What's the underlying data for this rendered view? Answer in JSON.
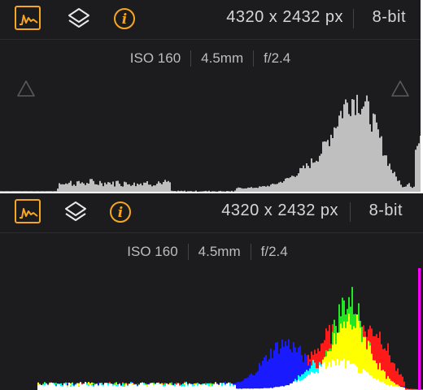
{
  "theme": {
    "accent": "#f5a623",
    "background": "#1c1c1e",
    "text": "#d6d6d6",
    "muted_text": "#bdbdbd",
    "luminance": "#bfbfbf",
    "red": "#ff1a1a",
    "green": "#22e622",
    "blue": "#1a1aff",
    "yellow": "#ffff00",
    "cyan": "#00ffff",
    "magenta": "#ff00ff",
    "white": "#ffffff"
  },
  "panels": [
    {
      "mode": "luminance",
      "toolbar": {
        "histogram_icon": "waveform-icon",
        "layers_icon": "layers-icon",
        "info_icon": "info-icon",
        "dimensions": "4320 x 2432 px",
        "bit_depth": "8-bit"
      },
      "exif": {
        "iso": "ISO 160",
        "focal_length": "4.5mm",
        "aperture": "f/2.4"
      },
      "clipping": {
        "shadow_icon": "triangle-outline-icon",
        "highlight_icon": "triangle-outline-icon"
      }
    },
    {
      "mode": "rgb",
      "toolbar": {
        "histogram_icon": "waveform-icon",
        "layers_icon": "layers-icon",
        "info_icon": "info-icon",
        "dimensions": "4320 x 2432 px",
        "bit_depth": "8-bit"
      },
      "exif": {
        "iso": "ISO 160",
        "focal_length": "4.5mm",
        "aperture": "f/2.4"
      }
    }
  ]
}
